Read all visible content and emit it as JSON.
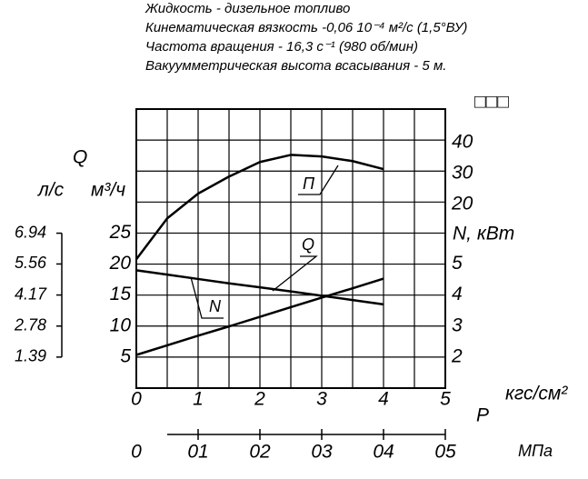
{
  "chart_data": {
    "type": "line",
    "notes": [
      "Жидкость - дизельное топливо",
      "Кинематическая вязкость -0,06 10⁻⁴ м²/с (1,5°ВУ)",
      "Частота вращения - 16,3 с⁻¹ (980 об/мин)",
      "Вакуумметрическая высота всасывания  - 5 м."
    ],
    "x_label": "P",
    "x_unit": "кгс/см²",
    "x2_unit": "МПа",
    "y_label": "Q",
    "y_unit": "м³/ч",
    "yalt_unit": "л/с",
    "y2_label": "N, кВт",
    "y3_label": "□□□",
    "x": [
      0,
      0.5,
      1,
      1.5,
      2,
      2.5,
      3,
      3.5,
      4
    ],
    "xlim": [
      0,
      5
    ],
    "xticks": [
      0,
      1,
      2,
      3,
      4,
      5
    ],
    "x2lim": [
      0,
      0.5
    ],
    "x2ticks": [
      0,
      {
        "value": 0.1,
        "label": "01"
      },
      {
        "value": 0.2,
        "label": "02"
      },
      {
        "value": 0.3,
        "label": "03"
      },
      {
        "value": 0.4,
        "label": "04"
      },
      {
        "value": 0.5,
        "label": "05"
      }
    ],
    "ylim": [
      0,
      45
    ],
    "yticks": [
      5,
      10,
      15,
      20,
      25
    ],
    "yaltlim": [
      0,
      12.5
    ],
    "yaltticks": [
      1.39,
      2.78,
      4.17,
      5.56,
      6.94
    ],
    "y2lim": [
      1,
      10
    ],
    "y2ticks": [
      2,
      3,
      4,
      5
    ],
    "y3lim": [
      -39.3,
      50.8
    ],
    "y3ticks": [
      20,
      30,
      40
    ],
    "grid": true,
    "xgrid": [
      0,
      0.5,
      1,
      1.5,
      2,
      2.5,
      3,
      3.5,
      4,
      4.5,
      5
    ],
    "ygrid": [
      1,
      2,
      3,
      4,
      5,
      6,
      7,
      8,
      9,
      10
    ],
    "series": [
      {
        "name": "П",
        "color": "#000000",
        "axis": "y3",
        "values": [
          2.3,
          15.5,
          23.5,
          29,
          33.7,
          36,
          35.5,
          34,
          31.4
        ]
      },
      {
        "name": "Q",
        "color": "#000000",
        "axis": "y",
        "values": [
          19,
          18.3,
          17.6,
          16.9,
          16.25,
          15.6,
          14.9,
          14.2,
          13.5
        ]
      },
      {
        "name": "N",
        "color": "#000000",
        "axis": "y2",
        "values": [
          2.07,
          2.38,
          2.69,
          2.99,
          3.3,
          3.61,
          3.92,
          4.22,
          4.53
        ]
      }
    ]
  }
}
